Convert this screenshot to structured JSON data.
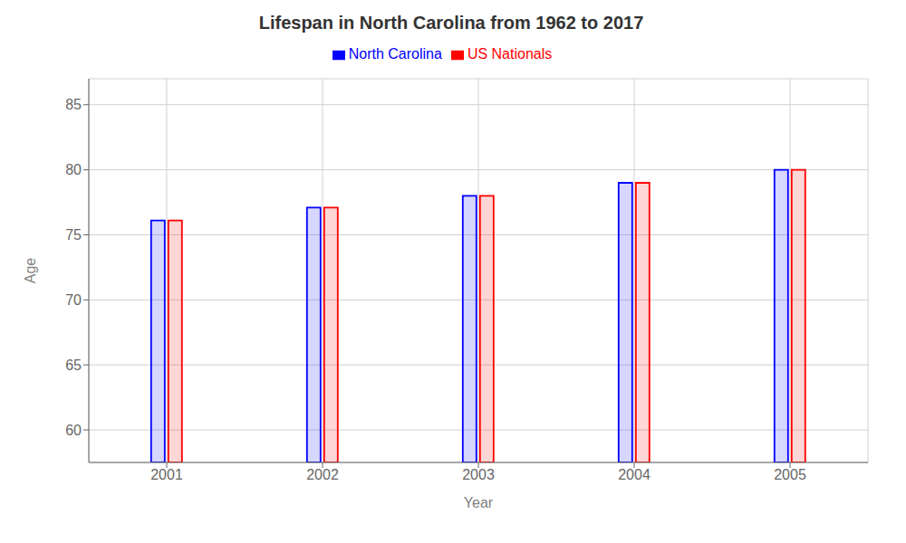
{
  "chart_data": {
    "type": "bar",
    "title": "Lifespan in North Carolina from 1962 to 2017",
    "x_label": "Year",
    "y_label": "Age",
    "categories": [
      "2001",
      "2002",
      "2003",
      "2004",
      "2005"
    ],
    "series": [
      {
        "name": "North Carolina",
        "color": "#0000ff",
        "values": [
          76.1,
          77.1,
          78.0,
          79.0,
          80.0
        ]
      },
      {
        "name": "US Nationals",
        "color": "#ff0000",
        "values": [
          76.1,
          77.1,
          78.0,
          79.0,
          80.0
        ]
      }
    ],
    "ylim": [
      57.5,
      87
    ],
    "yticks": [
      60,
      65,
      70,
      75,
      80,
      85
    ],
    "grid": true,
    "legend": "top"
  }
}
